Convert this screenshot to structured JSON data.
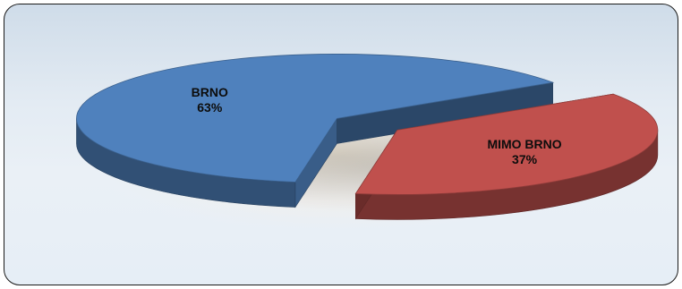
{
  "chart_data": {
    "type": "pie",
    "style": "3d-exploded",
    "title": "",
    "legend": "none",
    "slices": [
      {
        "label": "BRNO",
        "value": 63,
        "value_label": "63%",
        "color": "#4f81bd"
      },
      {
        "label": "MIMO BRNO",
        "value": 37,
        "value_label": "37%",
        "color": "#c0504d"
      }
    ]
  }
}
